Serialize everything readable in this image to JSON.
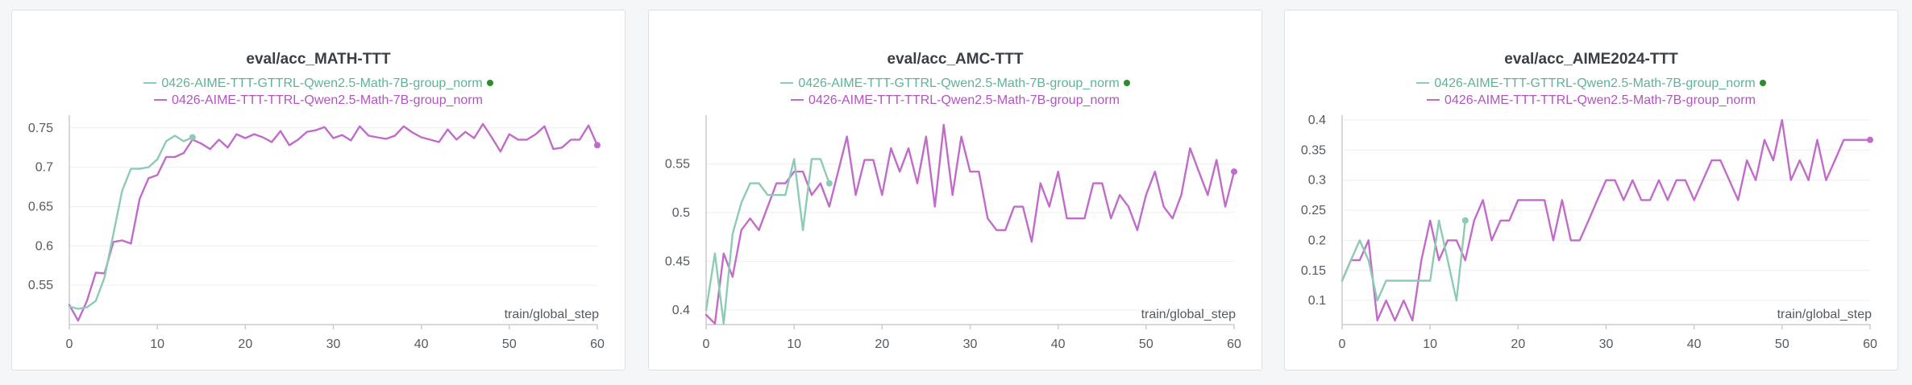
{
  "chart_data": [
    {
      "type": "line",
      "title": "eval/acc_MATH-TTT",
      "xlabel": "train/global_step",
      "xlim": [
        0,
        60
      ],
      "ylim": [
        0.5,
        0.76
      ],
      "xticks": [
        0,
        10,
        20,
        30,
        40,
        50,
        60
      ],
      "yticks": [
        0.55,
        0.6,
        0.65,
        0.7,
        0.75
      ],
      "ytick_labels": [
        "0.55",
        "0.6",
        "0.65",
        "0.7",
        "0.75"
      ],
      "series": [
        {
          "name": "0426-AIME-TTT-GTTRL-Qwen2.5-Math-7B-group_norm",
          "color": "#8dcbb2",
          "x": [
            0,
            1,
            2,
            3,
            4,
            5,
            6,
            7,
            8,
            9,
            10,
            11,
            12,
            13,
            14
          ],
          "y": [
            0.523,
            0.52,
            0.522,
            0.53,
            0.56,
            0.615,
            0.67,
            0.698,
            0.698,
            0.7,
            0.71,
            0.733,
            0.74,
            0.733,
            0.738
          ]
        },
        {
          "name": "0426-AIME-TTT-TTRL-Qwen2.5-Math-7B-group_norm",
          "color": "#c06cc8",
          "x": [
            0,
            1,
            2,
            3,
            4,
            5,
            6,
            7,
            8,
            9,
            10,
            11,
            12,
            13,
            14,
            15,
            16,
            17,
            18,
            19,
            20,
            21,
            22,
            23,
            24,
            25,
            26,
            27,
            28,
            29,
            30,
            31,
            32,
            33,
            34,
            35,
            36,
            37,
            38,
            39,
            40,
            41,
            42,
            43,
            44,
            45,
            46,
            47,
            48,
            49,
            50,
            51,
            52,
            53,
            54,
            55,
            56,
            57,
            58,
            59,
            60
          ],
          "y": [
            0.525,
            0.505,
            0.53,
            0.566,
            0.565,
            0.605,
            0.607,
            0.603,
            0.66,
            0.686,
            0.69,
            0.713,
            0.713,
            0.718,
            0.735,
            0.73,
            0.723,
            0.735,
            0.725,
            0.742,
            0.737,
            0.742,
            0.738,
            0.732,
            0.746,
            0.728,
            0.735,
            0.745,
            0.747,
            0.751,
            0.737,
            0.741,
            0.734,
            0.752,
            0.74,
            0.738,
            0.736,
            0.74,
            0.752,
            0.744,
            0.738,
            0.735,
            0.732,
            0.748,
            0.735,
            0.745,
            0.737,
            0.755,
            0.738,
            0.72,
            0.742,
            0.735,
            0.735,
            0.742,
            0.752,
            0.723,
            0.725,
            0.735,
            0.735,
            0.753,
            0.728
          ]
        }
      ]
    },
    {
      "type": "line",
      "title": "eval/acc_AMC-TTT",
      "xlabel": "train/global_step",
      "xlim": [
        0,
        60
      ],
      "ylim": [
        0.385,
        0.595
      ],
      "xticks": [
        0,
        10,
        20,
        30,
        40,
        50,
        60
      ],
      "yticks": [
        0.4,
        0.45,
        0.5,
        0.55
      ],
      "ytick_labels": [
        "0.4",
        "0.45",
        "0.5",
        "0.55"
      ],
      "series": [
        {
          "name": "0426-AIME-TTT-GTTRL-Qwen2.5-Math-7B-group_norm",
          "color": "#8dcbb2",
          "x": [
            0,
            1,
            2,
            3,
            4,
            5,
            6,
            7,
            8,
            9,
            10,
            11,
            12,
            13,
            14
          ],
          "y": [
            0.4,
            0.458,
            0.386,
            0.478,
            0.51,
            0.53,
            0.53,
            0.518,
            0.518,
            0.518,
            0.555,
            0.482,
            0.555,
            0.555,
            0.53
          ]
        },
        {
          "name": "0426-AIME-TTT-TTRL-Qwen2.5-Math-7B-group_norm",
          "color": "#c06cc8",
          "x": [
            0,
            1,
            2,
            3,
            4,
            5,
            6,
            7,
            8,
            9,
            10,
            11,
            12,
            13,
            14,
            15,
            16,
            17,
            18,
            19,
            20,
            21,
            22,
            23,
            24,
            25,
            26,
            27,
            28,
            29,
            30,
            31,
            32,
            33,
            34,
            35,
            36,
            37,
            38,
            39,
            40,
            41,
            42,
            43,
            44,
            45,
            46,
            47,
            48,
            49,
            50,
            51,
            52,
            53,
            54,
            55,
            56,
            57,
            58,
            59,
            60
          ],
          "y": [
            0.395,
            0.386,
            0.458,
            0.434,
            0.482,
            0.494,
            0.482,
            0.506,
            0.53,
            0.53,
            0.542,
            0.542,
            0.518,
            0.53,
            0.506,
            0.542,
            0.578,
            0.518,
            0.554,
            0.554,
            0.518,
            0.566,
            0.542,
            0.566,
            0.53,
            0.578,
            0.506,
            0.59,
            0.518,
            0.578,
            0.542,
            0.542,
            0.494,
            0.482,
            0.482,
            0.506,
            0.506,
            0.47,
            0.53,
            0.506,
            0.542,
            0.494,
            0.494,
            0.494,
            0.53,
            0.53,
            0.494,
            0.518,
            0.506,
            0.482,
            0.518,
            0.542,
            0.506,
            0.494,
            0.518,
            0.566,
            0.542,
            0.518,
            0.554,
            0.506,
            0.542
          ]
        }
      ]
    },
    {
      "type": "line",
      "title": "eval/acc_AIME2024-TTT",
      "xlabel": "train/global_step",
      "xlim": [
        0,
        60
      ],
      "ylim": [
        0.06,
        0.4
      ],
      "xticks": [
        0,
        10,
        20,
        30,
        40,
        50,
        60
      ],
      "yticks": [
        0.1,
        0.15,
        0.2,
        0.25,
        0.3,
        0.35,
        0.4
      ],
      "ytick_labels": [
        "0.1",
        "0.15",
        "0.2",
        "0.25",
        "0.3",
        "0.35",
        "0.4"
      ],
      "series": [
        {
          "name": "0426-AIME-TTT-GTTRL-Qwen2.5-Math-7B-group_norm",
          "color": "#8dcbb2",
          "x": [
            0,
            1,
            2,
            3,
            4,
            5,
            6,
            7,
            8,
            9,
            10,
            11,
            12,
            13,
            14
          ],
          "y": [
            0.133,
            0.167,
            0.2,
            0.167,
            0.1,
            0.133,
            0.133,
            0.133,
            0.133,
            0.133,
            0.133,
            0.233,
            0.167,
            0.1,
            0.233
          ]
        },
        {
          "name": "0426-AIME-TTT-TTRL-Qwen2.5-Math-7B-group_norm",
          "color": "#c06cc8",
          "x": [
            0,
            1,
            2,
            3,
            4,
            5,
            6,
            7,
            8,
            9,
            10,
            11,
            12,
            13,
            14,
            15,
            16,
            17,
            18,
            19,
            20,
            21,
            22,
            23,
            24,
            25,
            26,
            27,
            28,
            29,
            30,
            31,
            32,
            33,
            34,
            35,
            36,
            37,
            38,
            39,
            40,
            41,
            42,
            43,
            44,
            45,
            46,
            47,
            48,
            49,
            50,
            51,
            52,
            53,
            54,
            55,
            56,
            57,
            58,
            59,
            60
          ],
          "y": [
            0.133,
            0.167,
            0.167,
            0.2,
            0.067,
            0.1,
            0.067,
            0.1,
            0.067,
            0.167,
            0.233,
            0.167,
            0.2,
            0.2,
            0.167,
            0.233,
            0.267,
            0.2,
            0.233,
            0.233,
            0.267,
            0.267,
            0.267,
            0.267,
            0.2,
            0.267,
            0.2,
            0.2,
            0.233,
            0.267,
            0.3,
            0.3,
            0.267,
            0.3,
            0.267,
            0.267,
            0.3,
            0.267,
            0.3,
            0.3,
            0.267,
            0.3,
            0.333,
            0.333,
            0.3,
            0.267,
            0.333,
            0.3,
            0.367,
            0.333,
            0.4,
            0.3,
            0.333,
            0.3,
            0.367,
            0.3,
            0.333,
            0.367,
            0.367,
            0.367,
            0.367
          ]
        }
      ]
    }
  ]
}
